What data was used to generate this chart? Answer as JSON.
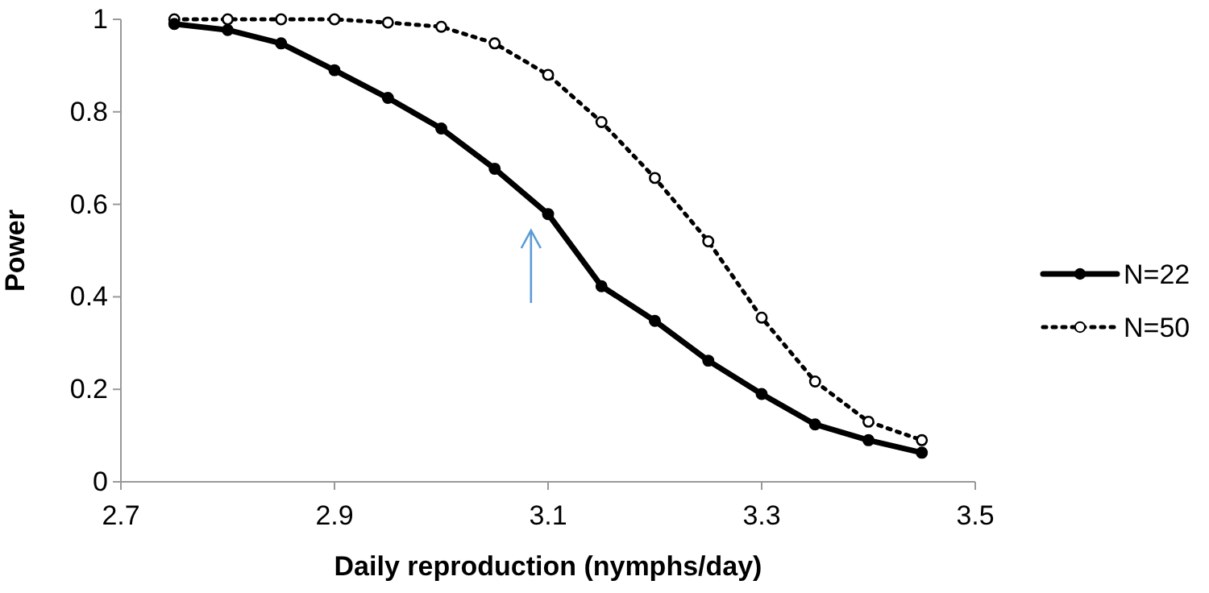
{
  "chart_data": {
    "type": "line",
    "xlabel": "Daily reproduction (nymphs/day)",
    "ylabel": "Power",
    "xlim": [
      2.7,
      3.5
    ],
    "xticks": [
      2.7,
      2.9,
      3.1,
      3.3,
      3.5
    ],
    "ylim": [
      0,
      1
    ],
    "yticks": [
      0,
      0.2,
      0.4,
      0.6,
      0.8,
      1
    ],
    "x": [
      2.75,
      2.8,
      2.85,
      2.9,
      2.95,
      3.0,
      3.05,
      3.1,
      3.15,
      3.2,
      3.25,
      3.3,
      3.35,
      3.4,
      3.45
    ],
    "series": [
      {
        "name": "N=22",
        "color": "#000000",
        "line_style": "solid",
        "values": [
          0.99,
          0.977,
          0.948,
          0.89,
          0.83,
          0.764,
          0.677,
          0.579,
          0.423,
          0.348,
          0.262,
          0.19,
          0.124,
          0.09,
          0.063
        ]
      },
      {
        "name": "N=50",
        "color": "#000000",
        "line_style": "dotted",
        "values": [
          1.0,
          1.0,
          1.0,
          1.0,
          0.993,
          0.984,
          0.948,
          0.88,
          0.778,
          0.657,
          0.52,
          0.355,
          0.217,
          0.13,
          0.09
        ]
      }
    ],
    "marker": "circle",
    "grid": false,
    "legend": "right"
  }
}
